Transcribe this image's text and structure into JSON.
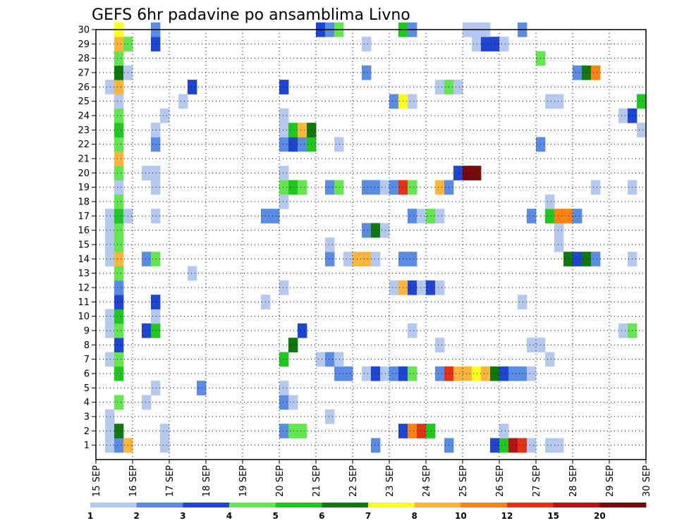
{
  "chart_data": {
    "type": "heatmap",
    "title": "GEFS 6hr padavine po ansamblima Livno",
    "x_tick_labels": [
      "15 SEP",
      "16 SEP",
      "17 SEP",
      "18 SEP",
      "19 SEP",
      "20 SEP",
      "21 SEP",
      "22 SEP",
      "23 SEP",
      "24 SEP",
      "25 SEP",
      "26 SEP",
      "27 SEP",
      "28 SEP",
      "29 SEP",
      "30 SEP"
    ],
    "y_tick_labels": [
      "1",
      "2",
      "3",
      "4",
      "5",
      "6",
      "7",
      "8",
      "9",
      "10",
      "11",
      "12",
      "13",
      "14",
      "15",
      "16",
      "17",
      "18",
      "19",
      "20",
      "21",
      "22",
      "23",
      "24",
      "25",
      "26",
      "27",
      "28",
      "29",
      "30"
    ],
    "xlim": [
      0,
      60
    ],
    "ylim": [
      0,
      30
    ],
    "grid": true,
    "colorbar": {
      "labels": [
        "1",
        "2",
        "3",
        "4",
        "5",
        "6",
        "7",
        "8",
        "10",
        "12",
        "15",
        "20"
      ],
      "colors": [
        "#b4c8f0",
        "#5a8ce6",
        "#1e46d2",
        "#64e650",
        "#1ec81e",
        "#0f780f",
        "#ffff1e",
        "#ffb43c",
        "#ff8214",
        "#e63214",
        "#b41414",
        "#780a0a"
      ]
    },
    "cells": [
      [
        1,
        1,
        0
      ],
      [
        1,
        2,
        1
      ],
      [
        1,
        3,
        7
      ],
      [
        1,
        7,
        0
      ],
      [
        1,
        30,
        1
      ],
      [
        1,
        38,
        1
      ],
      [
        1,
        43,
        2
      ],
      [
        1,
        44,
        4
      ],
      [
        1,
        45,
        10
      ],
      [
        1,
        46,
        9
      ],
      [
        1,
        47,
        0
      ],
      [
        1,
        49,
        0
      ],
      [
        1,
        50,
        0
      ],
      [
        2,
        1,
        0
      ],
      [
        2,
        2,
        5
      ],
      [
        2,
        7,
        0
      ],
      [
        2,
        20,
        1
      ],
      [
        2,
        21,
        3
      ],
      [
        2,
        22,
        3
      ],
      [
        2,
        33,
        2
      ],
      [
        2,
        34,
        8
      ],
      [
        2,
        35,
        9
      ],
      [
        2,
        36,
        4
      ],
      [
        2,
        44,
        0
      ],
      [
        3,
        1,
        0
      ],
      [
        3,
        25,
        0
      ],
      [
        4,
        2,
        3
      ],
      [
        4,
        5,
        0
      ],
      [
        4,
        20,
        1
      ],
      [
        4,
        21,
        0
      ],
      [
        5,
        6,
        0
      ],
      [
        5,
        11,
        1
      ],
      [
        5,
        20,
        0
      ],
      [
        6,
        2,
        4
      ],
      [
        6,
        26,
        1
      ],
      [
        6,
        27,
        1
      ],
      [
        6,
        29,
        0
      ],
      [
        6,
        30,
        2
      ],
      [
        6,
        31,
        0
      ],
      [
        6,
        32,
        1
      ],
      [
        6,
        33,
        2
      ],
      [
        6,
        34,
        3
      ],
      [
        6,
        37,
        1
      ],
      [
        6,
        38,
        9
      ],
      [
        6,
        39,
        7
      ],
      [
        6,
        40,
        7
      ],
      [
        6,
        41,
        6
      ],
      [
        6,
        42,
        7
      ],
      [
        6,
        43,
        5
      ],
      [
        6,
        44,
        2
      ],
      [
        6,
        45,
        1
      ],
      [
        6,
        46,
        1
      ],
      [
        6,
        47,
        0
      ],
      [
        7,
        1,
        0
      ],
      [
        7,
        2,
        3
      ],
      [
        7,
        20,
        4
      ],
      [
        7,
        24,
        0
      ],
      [
        7,
        25,
        1
      ],
      [
        7,
        26,
        0
      ],
      [
        7,
        49,
        0
      ],
      [
        8,
        2,
        2
      ],
      [
        8,
        21,
        5
      ],
      [
        8,
        37,
        0
      ],
      [
        8,
        47,
        0
      ],
      [
        8,
        48,
        0
      ],
      [
        9,
        1,
        0
      ],
      [
        9,
        2,
        3
      ],
      [
        9,
        5,
        2
      ],
      [
        9,
        6,
        4
      ],
      [
        9,
        22,
        2
      ],
      [
        9,
        34,
        0
      ],
      [
        9,
        57,
        0
      ],
      [
        9,
        58,
        3
      ],
      [
        10,
        1,
        0
      ],
      [
        10,
        2,
        4
      ],
      [
        10,
        6,
        0
      ],
      [
        11,
        2,
        2
      ],
      [
        11,
        6,
        2
      ],
      [
        11,
        18,
        0
      ],
      [
        11,
        46,
        0
      ],
      [
        12,
        2,
        1
      ],
      [
        12,
        20,
        0
      ],
      [
        12,
        32,
        0
      ],
      [
        12,
        33,
        7
      ],
      [
        12,
        34,
        2
      ],
      [
        12,
        35,
        0
      ],
      [
        12,
        36,
        2
      ],
      [
        12,
        37,
        0
      ],
      [
        13,
        2,
        3
      ],
      [
        13,
        10,
        0
      ],
      [
        14,
        1,
        0
      ],
      [
        14,
        2,
        7
      ],
      [
        14,
        5,
        1
      ],
      [
        14,
        6,
        3
      ],
      [
        14,
        25,
        1
      ],
      [
        14,
        27,
        0
      ],
      [
        14,
        28,
        7
      ],
      [
        14,
        29,
        7
      ],
      [
        14,
        30,
        0
      ],
      [
        14,
        33,
        1
      ],
      [
        14,
        34,
        1
      ],
      [
        14,
        51,
        5
      ],
      [
        14,
        52,
        2
      ],
      [
        14,
        53,
        5
      ],
      [
        14,
        54,
        1
      ],
      [
        14,
        58,
        0
      ],
      [
        15,
        1,
        0
      ],
      [
        15,
        2,
        3
      ],
      [
        15,
        25,
        0
      ],
      [
        15,
        50,
        0
      ],
      [
        16,
        1,
        0
      ],
      [
        16,
        2,
        3
      ],
      [
        16,
        29,
        1
      ],
      [
        16,
        30,
        5
      ],
      [
        16,
        31,
        0
      ],
      [
        16,
        50,
        0
      ],
      [
        17,
        1,
        0
      ],
      [
        17,
        2,
        4
      ],
      [
        17,
        3,
        0
      ],
      [
        17,
        6,
        0
      ],
      [
        17,
        18,
        1
      ],
      [
        17,
        19,
        1
      ],
      [
        17,
        34,
        1
      ],
      [
        17,
        35,
        0
      ],
      [
        17,
        36,
        3
      ],
      [
        17,
        37,
        0
      ],
      [
        17,
        47,
        1
      ],
      [
        17,
        49,
        4
      ],
      [
        17,
        50,
        8
      ],
      [
        17,
        51,
        8
      ],
      [
        17,
        52,
        1
      ],
      [
        18,
        2,
        3
      ],
      [
        18,
        20,
        0
      ],
      [
        18,
        49,
        0
      ],
      [
        19,
        2,
        0
      ],
      [
        19,
        6,
        0
      ],
      [
        19,
        20,
        3
      ],
      [
        19,
        21,
        4
      ],
      [
        19,
        22,
        3
      ],
      [
        19,
        25,
        1
      ],
      [
        19,
        26,
        3
      ],
      [
        19,
        29,
        1
      ],
      [
        19,
        30,
        1
      ],
      [
        19,
        31,
        0
      ],
      [
        19,
        32,
        1
      ],
      [
        19,
        33,
        9
      ],
      [
        19,
        34,
        3
      ],
      [
        19,
        37,
        7
      ],
      [
        19,
        38,
        1
      ],
      [
        19,
        54,
        0
      ],
      [
        19,
        58,
        0
      ],
      [
        20,
        2,
        3
      ],
      [
        20,
        5,
        0
      ],
      [
        20,
        6,
        0
      ],
      [
        20,
        20,
        0
      ],
      [
        20,
        39,
        2
      ],
      [
        20,
        40,
        11
      ],
      [
        20,
        41,
        11
      ],
      [
        21,
        2,
        7
      ],
      [
        22,
        2,
        3
      ],
      [
        22,
        6,
        1
      ],
      [
        22,
        20,
        1
      ],
      [
        22,
        21,
        2
      ],
      [
        22,
        22,
        1
      ],
      [
        22,
        23,
        4
      ],
      [
        22,
        26,
        0
      ],
      [
        22,
        48,
        1
      ],
      [
        23,
        2,
        4
      ],
      [
        23,
        6,
        0
      ],
      [
        23,
        20,
        0
      ],
      [
        23,
        21,
        4
      ],
      [
        23,
        22,
        7
      ],
      [
        23,
        23,
        5
      ],
      [
        23,
        59,
        0
      ],
      [
        24,
        2,
        3
      ],
      [
        24,
        7,
        0
      ],
      [
        24,
        20,
        0
      ],
      [
        24,
        57,
        0
      ],
      [
        24,
        58,
        2
      ],
      [
        25,
        2,
        0
      ],
      [
        25,
        9,
        0
      ],
      [
        25,
        32,
        1
      ],
      [
        25,
        33,
        6
      ],
      [
        25,
        34,
        0
      ],
      [
        25,
        49,
        0
      ],
      [
        25,
        50,
        0
      ],
      [
        25,
        59,
        4
      ],
      [
        26,
        1,
        0
      ],
      [
        26,
        2,
        7
      ],
      [
        26,
        10,
        2
      ],
      [
        26,
        20,
        2
      ],
      [
        26,
        37,
        0
      ],
      [
        26,
        38,
        3
      ],
      [
        26,
        39,
        0
      ],
      [
        27,
        2,
        5
      ],
      [
        27,
        3,
        0
      ],
      [
        27,
        29,
        1
      ],
      [
        27,
        52,
        1
      ],
      [
        27,
        53,
        5
      ],
      [
        27,
        54,
        8
      ],
      [
        28,
        2,
        3
      ],
      [
        28,
        48,
        3
      ],
      [
        29,
        2,
        7
      ],
      [
        29,
        3,
        3
      ],
      [
        29,
        6,
        2
      ],
      [
        29,
        29,
        0
      ],
      [
        29,
        41,
        0
      ],
      [
        29,
        42,
        2
      ],
      [
        29,
        43,
        2
      ],
      [
        29,
        44,
        0
      ],
      [
        30,
        2,
        6
      ],
      [
        30,
        6,
        1
      ],
      [
        30,
        24,
        2
      ],
      [
        30,
        25,
        1
      ],
      [
        30,
        26,
        3
      ],
      [
        30,
        33,
        4
      ],
      [
        30,
        34,
        1
      ],
      [
        30,
        40,
        0
      ],
      [
        30,
        41,
        0
      ],
      [
        30,
        42,
        0
      ],
      [
        30,
        46,
        1
      ]
    ]
  }
}
